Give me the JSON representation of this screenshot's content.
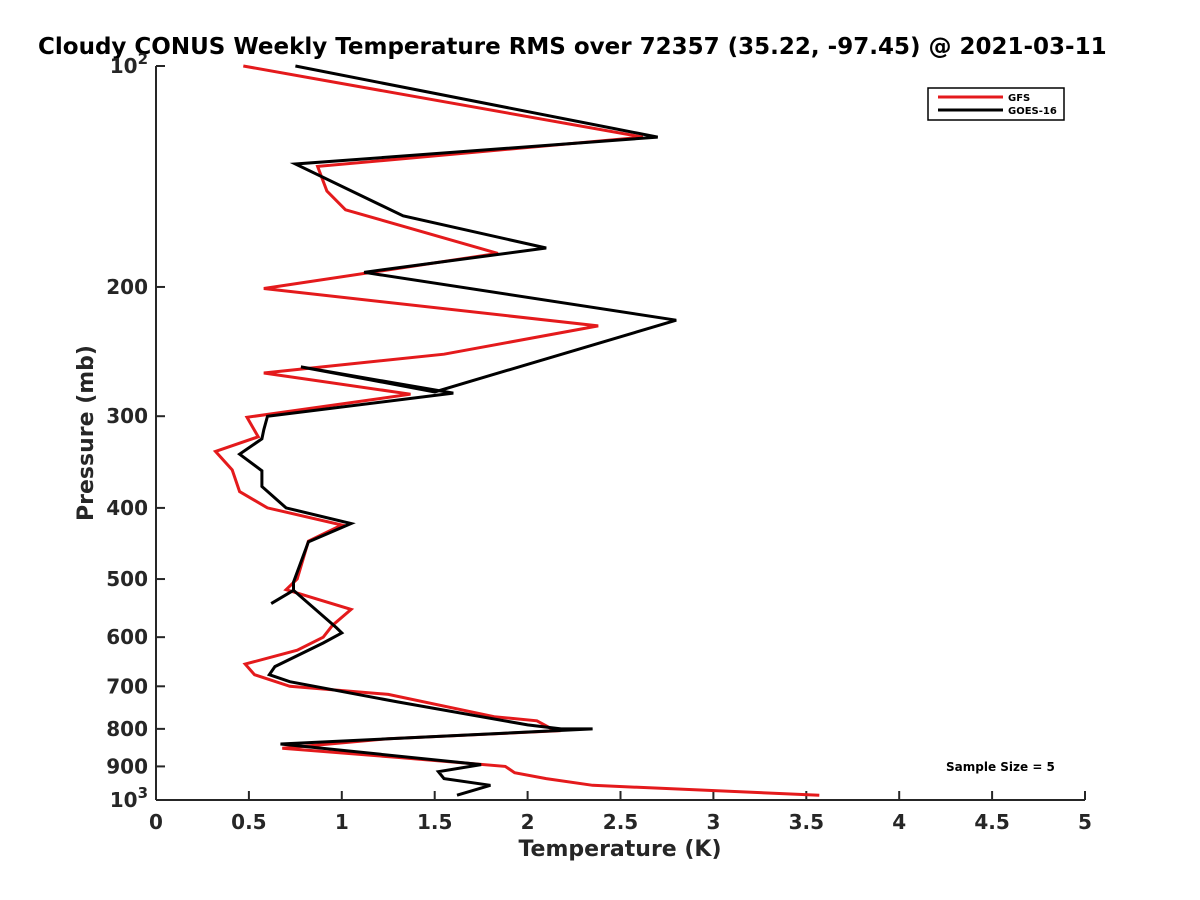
{
  "chart_data": {
    "type": "line",
    "title": "Cloudy CONUS Weekly Temperature RMS over 72357 (35.22, -97.45) @ 2021-03-11",
    "xlabel": "Temperature (K)",
    "ylabel": "Pressure (mb)",
    "xlim": [
      0,
      5
    ],
    "ylim": [
      100,
      1000
    ],
    "y_scale": "log",
    "y_reversed": true,
    "grid": false,
    "legend_position": "top-right",
    "xticks": [
      0,
      0.5,
      1,
      1.5,
      2,
      2.5,
      3,
      3.5,
      4,
      4.5,
      5
    ],
    "xtick_labels": [
      "0",
      "0.5",
      "1",
      "1.5",
      "2",
      "2.5",
      "3",
      "3.5",
      "4",
      "4.5",
      "5"
    ],
    "yticks": [
      100,
      200,
      300,
      400,
      500,
      600,
      700,
      800,
      900,
      1000
    ],
    "ytick_labels": [
      {
        "base": "10",
        "exp": "2"
      },
      {
        "base": "200",
        "exp": ""
      },
      {
        "base": "300",
        "exp": ""
      },
      {
        "base": "400",
        "exp": ""
      },
      {
        "base": "500",
        "exp": ""
      },
      {
        "base": "600",
        "exp": ""
      },
      {
        "base": "700",
        "exp": ""
      },
      {
        "base": "800",
        "exp": ""
      },
      {
        "base": "900",
        "exp": ""
      },
      {
        "base": "10",
        "exp": "3"
      }
    ],
    "annotation": "Sample Size = 5",
    "series": [
      {
        "name": "GFS",
        "color": "#e41a1c",
        "x": [
          0.47,
          2.62,
          0.87,
          0.92,
          1.02,
          1.84,
          0.58,
          2.38,
          1.55,
          0.58,
          1.37,
          0.49,
          0.55,
          0.32,
          0.41,
          0.45,
          0.6,
          1.0,
          0.82,
          0.76,
          0.7,
          1.05,
          0.95,
          0.9,
          0.76,
          0.48,
          0.53,
          0.72,
          1.25,
          1.82,
          2.05,
          2.15,
          1.25,
          0.68,
          1.3,
          1.88,
          1.93,
          2.1,
          2.35,
          3.57
        ],
        "y": [
          100,
          125,
          137,
          148,
          157,
          180,
          201,
          226,
          247,
          262,
          280,
          301,
          320,
          335,
          355,
          380,
          400,
          422,
          444,
          500,
          517,
          550,
          578,
          600,
          625,
          653,
          675,
          700,
          718,
          770,
          780,
          805,
          825,
          850,
          875,
          900,
          918,
          935,
          955,
          985
        ]
      },
      {
        "name": "GOES-16",
        "color": "#000000",
        "x": [
          0.75,
          2.7,
          0.75,
          1.33,
          2.1,
          1.12,
          2.8,
          1.5,
          0.78,
          1.6,
          0.6,
          0.58,
          0.57,
          0.45,
          0.57,
          0.57,
          0.7,
          1.05,
          0.82,
          0.74,
          0.74,
          0.62,
          0.74,
          0.97,
          1.0,
          0.9,
          0.64,
          0.61,
          0.72,
          1.3,
          2.0,
          2.18,
          2.35,
          0.67,
          1.75,
          1.52,
          1.55,
          1.8,
          1.62
        ],
        "y": [
          100,
          125,
          136,
          160,
          177,
          191,
          222,
          278,
          257,
          279,
          300,
          313,
          322,
          338,
          356,
          374,
          400,
          420,
          445,
          505,
          518,
          540,
          518,
          582,
          592,
          611,
          658,
          675,
          690,
          735,
          790,
          800,
          800,
          839,
          895,
          915,
          935,
          955,
          985
        ]
      }
    ]
  }
}
